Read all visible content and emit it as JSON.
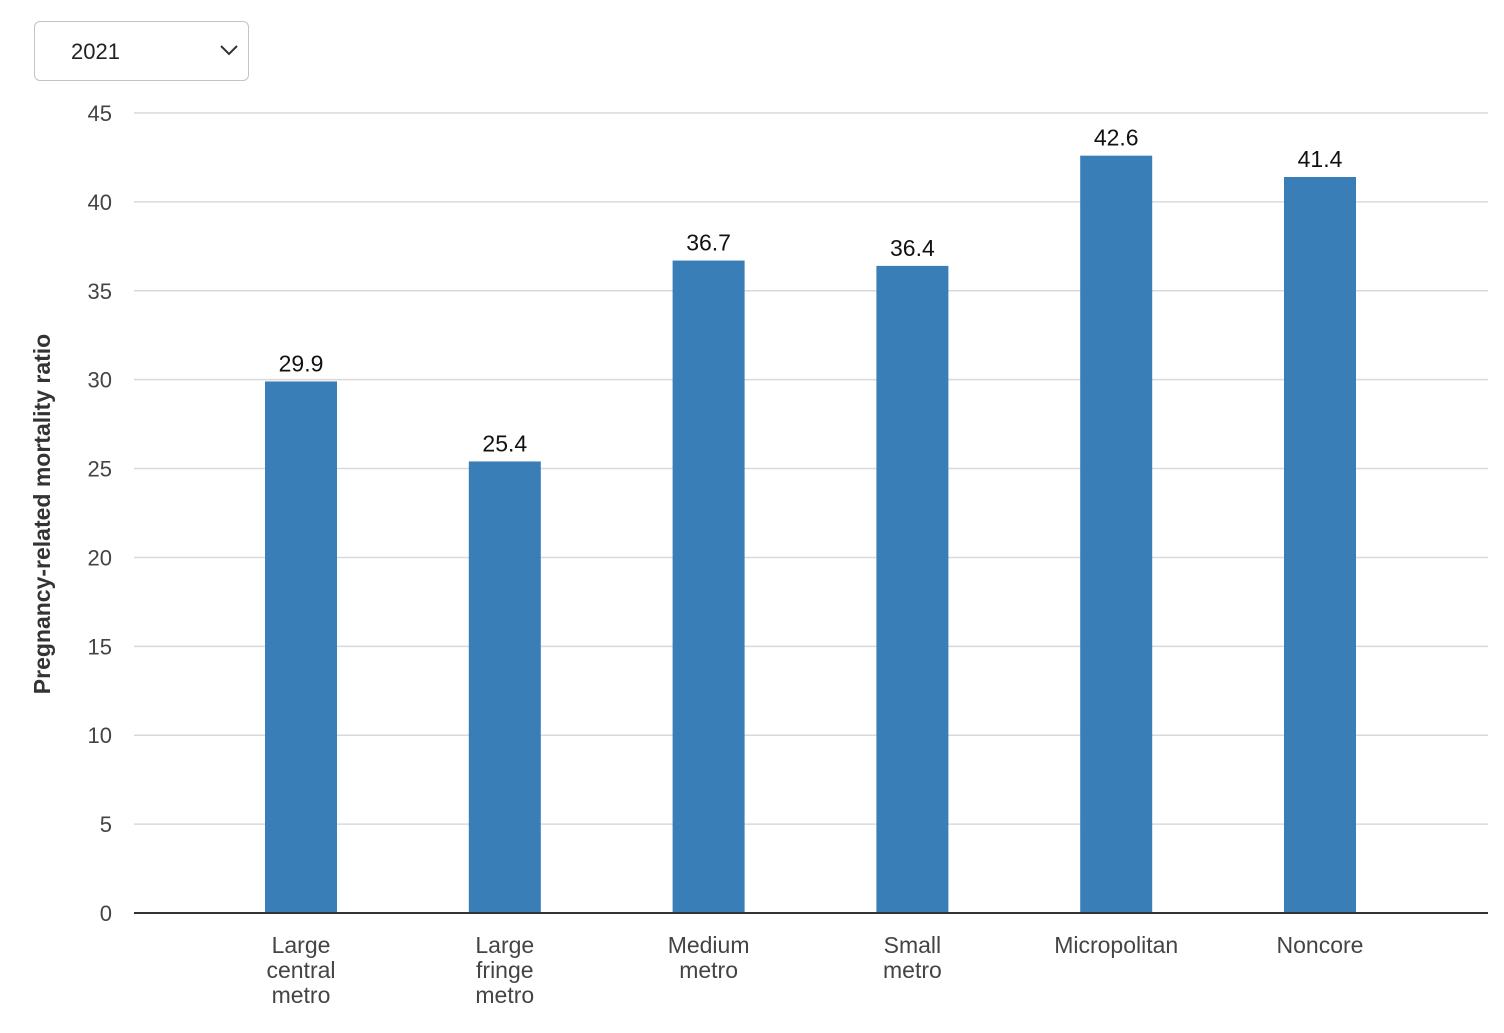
{
  "filter": {
    "selected_year": "2021"
  },
  "chart_data": {
    "type": "bar",
    "categories": [
      [
        "Large",
        "central",
        "metro"
      ],
      [
        "Large",
        "fringe",
        "metro"
      ],
      [
        "Medium",
        "metro"
      ],
      [
        "Small",
        "metro"
      ],
      [
        "Micropolitan"
      ],
      [
        "Noncore"
      ]
    ],
    "category_names": [
      "Large central metro",
      "Large fringe metro",
      "Medium metro",
      "Small metro",
      "Micropolitan",
      "Noncore"
    ],
    "values": [
      29.9,
      25.4,
      36.7,
      36.4,
      42.6,
      41.4
    ],
    "value_labels": [
      "29.9",
      "25.4",
      "36.7",
      "36.4",
      "42.6",
      "41.4"
    ],
    "ylabel": "Pregnancy-related mortality ratio",
    "xlabel": "",
    "ylim": [
      0,
      45
    ],
    "yticks": [
      0,
      5,
      10,
      15,
      20,
      25,
      30,
      35,
      40,
      45
    ],
    "grid": true,
    "colors": {
      "bar": "#3a7eb8",
      "grid": "#d9d9d9",
      "axis": "#333333",
      "tick_text": "#444444",
      "label_text": "#111111"
    }
  }
}
